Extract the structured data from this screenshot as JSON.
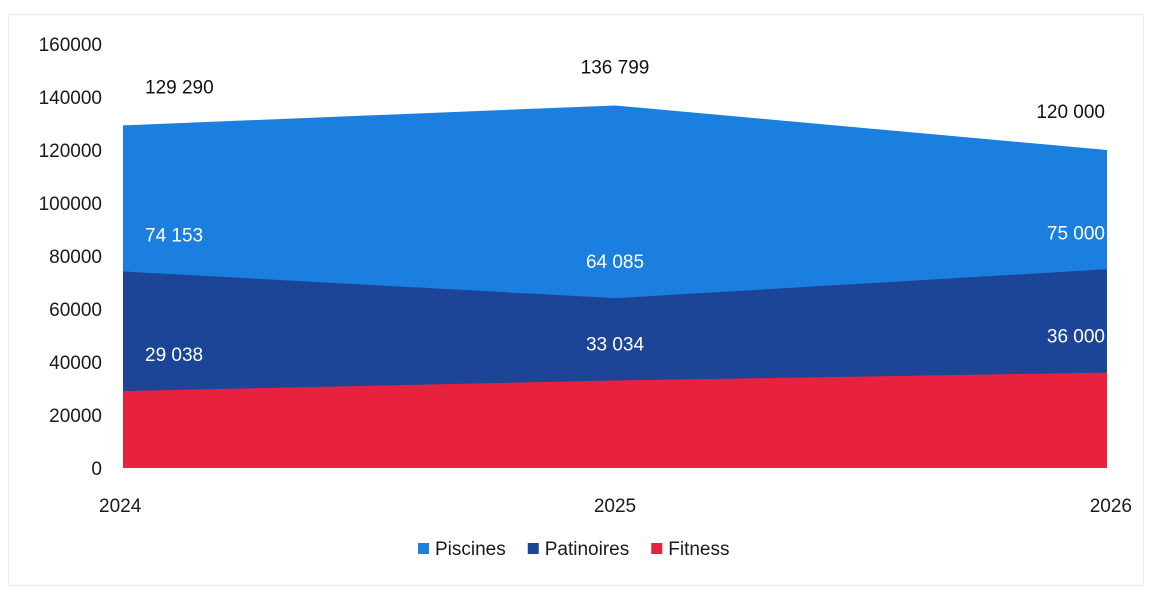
{
  "chart_data": {
    "type": "area",
    "stacked": true,
    "categories": [
      "2024",
      "2025",
      "2026"
    ],
    "ylim": [
      0,
      160000
    ],
    "yticks": [
      0,
      20000,
      40000,
      60000,
      80000,
      100000,
      120000,
      140000,
      160000
    ],
    "ytick_labels": [
      "0",
      "20000",
      "40000",
      "60000",
      "80000",
      "100000",
      "120000",
      "140000",
      "160000"
    ],
    "grid": false,
    "legend_position": "bottom",
    "series": [
      {
        "name": "Fitness",
        "color": "#e8213f",
        "values": [
          29038,
          33034,
          36000
        ],
        "labels": [
          "29 038",
          "33 034",
          "36 000"
        ]
      },
      {
        "name": "Patinoires",
        "color": "#1c4597",
        "values": [
          74153,
          64085,
          75000
        ],
        "labels": [
          "74 153",
          "64 085",
          "75 000"
        ]
      },
      {
        "name": "Piscines",
        "color": "#1b7fe0",
        "values": [
          129290,
          136799,
          120000
        ],
        "labels": [
          "129 290",
          "136 799",
          "120 000"
        ]
      }
    ],
    "legend_order": [
      "Piscines",
      "Patinoires",
      "Fitness"
    ]
  }
}
